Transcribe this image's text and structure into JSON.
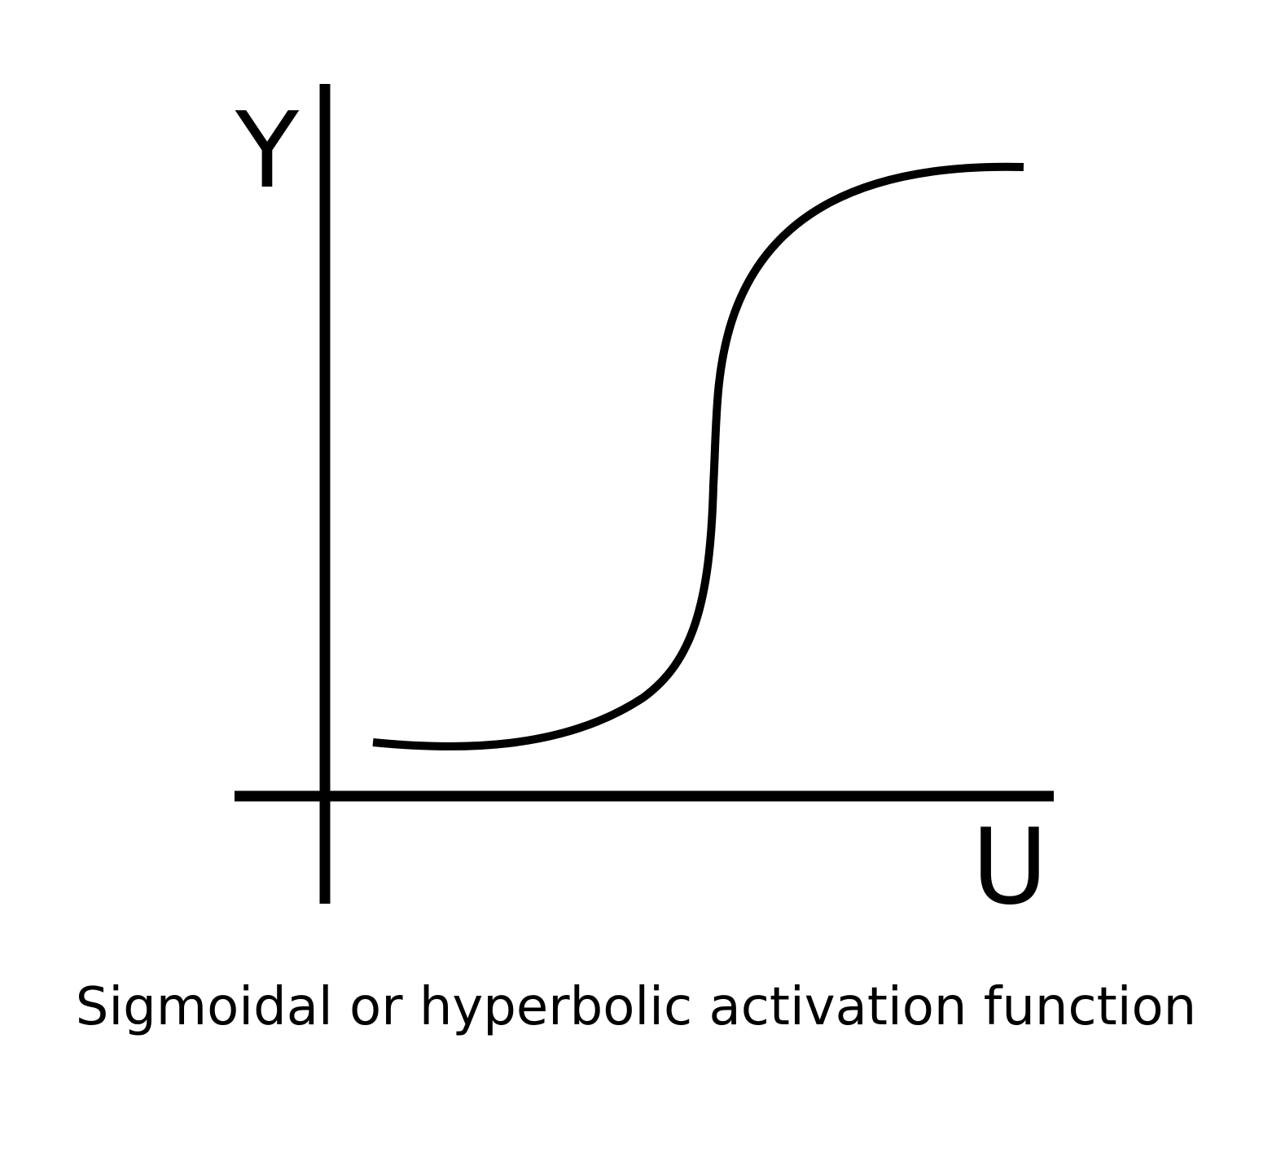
{
  "diagram": {
    "y_axis_label": "Y",
    "x_axis_label": "U",
    "caption": "Sigmoidal or hyperbolic activation function",
    "curve_shape": "sigmoid",
    "stroke_color": "#000000",
    "background_color": "#ffffff"
  }
}
